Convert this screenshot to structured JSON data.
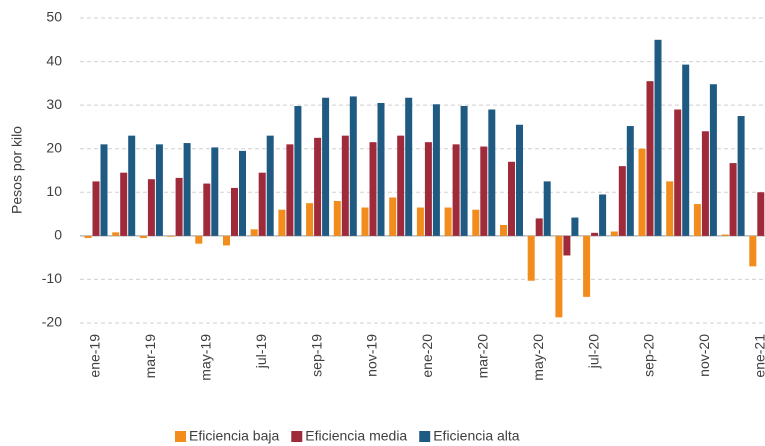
{
  "chart_data": {
    "type": "bar",
    "y_label": "Pesos por kilo",
    "categories": [
      "ene-19",
      null,
      "mar-19",
      null,
      "may-19",
      null,
      "jul-19",
      null,
      "sep-19",
      null,
      "nov-19",
      null,
      "ene-20",
      null,
      "mar-20",
      null,
      "may-20",
      null,
      "jul-20",
      null,
      "sep-20",
      null,
      "nov-20",
      null,
      "ene-21"
    ],
    "series": [
      {
        "name": "Eficiencia baja",
        "color": "#f28c1c",
        "values": [
          -0.5,
          0.8,
          -0.5,
          -0.2,
          -1.8,
          -2.2,
          1.5,
          6,
          7.5,
          8,
          6.5,
          8.8,
          6.5,
          6.5,
          6,
          2.5,
          -10.3,
          -18.7,
          -14,
          1,
          20,
          12.5,
          7.3,
          0.3,
          -7
        ]
      },
      {
        "name": "Eficiencia media",
        "color": "#9e2a3a",
        "values": [
          12.5,
          14.5,
          13,
          13.3,
          12,
          11,
          14.5,
          21,
          22.5,
          23,
          21.5,
          23,
          21.5,
          21,
          20.5,
          17,
          4,
          -4.5,
          0.7,
          16,
          35.5,
          29,
          24,
          16.7,
          10
        ]
      },
      {
        "name": "Eficiencia alta",
        "color": "#1f5a82",
        "values": [
          21,
          23,
          21,
          21.3,
          20.3,
          19.5,
          23,
          29.8,
          31.7,
          32,
          30.5,
          31.7,
          30.2,
          29.8,
          29,
          25.5,
          12.5,
          4.2,
          9.5,
          25.2,
          45,
          39.3,
          34.8,
          27.5,
          null
        ]
      }
    ],
    "ylim": [
      -20,
      50
    ],
    "yticks": [
      -20,
      -10,
      0,
      10,
      20,
      30,
      40,
      50
    ],
    "grid": true,
    "legend": "bottom"
  }
}
